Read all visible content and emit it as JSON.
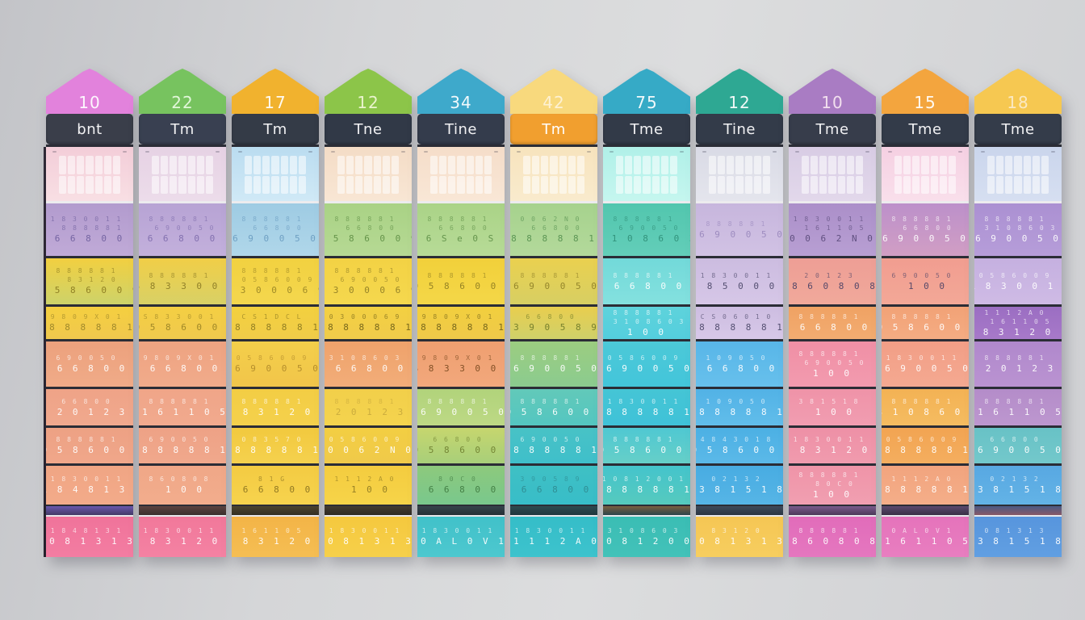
{
  "scene": {
    "wall_color": "#d5d6d8",
    "divider_dark": "#2b2d36",
    "divider_light": "#ecebee"
  },
  "digit_pool": [
    "1 8 4 8 1 3 1",
    "8 8 8 8 8 1",
    "1 8 3 0 0 1 1",
    "6 6 8 0 0",
    "8 5 0 0 0",
    "C S 0 6 0 1 0",
    "6 S e 0 S",
    "0 3 0 0 0 6 9",
    "9 8 0 9 X 0 1",
    "6 9 0 0 5 0",
    "8 6 0 8 0 8",
    "S 8 3 3 0 0 1",
    "0 5 8 6 0 0 9",
    "3 1 0 8 6 0 3",
    "8 1 G",
    "1 0 0",
    "2 0 1 2 3",
    "0 0 6 2 N 0",
    "1 6 1 1 0 5",
    "8 3 1 2 0",
    "0 8 1 3 1 3",
    "1 1 1 2 A 0",
    "0 A L 0 V 1",
    "1 0 8 1 2 0 0 1",
    "3 9 0 5 8 9",
    "4 8 4 3 0 1 8",
    "0 2 1 3 2",
    "3 8 1 5 1 8",
    "1 0 9 0 5 0",
    "8 0 C 0",
    "C S 1 D C L",
    "0 8 3 5 7 0"
  ],
  "columns": [
    {
      "number": "10",
      "peak_color": "#e282dc",
      "number_color": "#ffffff",
      "band": {
        "label": "bnt",
        "bg": "#3a3e4a",
        "fg": "#f2f2f4"
      },
      "grid_row": {
        "bg1": "#f3cdd8",
        "bg2": "#f8dfe4"
      },
      "digit_rows": [
        {
          "bg1": "#b29bce",
          "bg2": "#c0aad7",
          "ink": "#6f5f9e",
          "lines": [
            2,
            1,
            3
          ]
        },
        {
          "bg1": "#f2cf40",
          "bg2": "#cdd36a",
          "ink": "#8a7a20",
          "lines": [
            1,
            19,
            12
          ]
        },
        {
          "bg1": "#f5cf3f",
          "bg2": "#f0c84e",
          "ink": "#9a8428",
          "lines": [
            8,
            1
          ]
        },
        {
          "bg1": "#eca17d",
          "bg2": "#f0ab88",
          "ink": "#ffffff",
          "lines": [
            9,
            3
          ]
        },
        {
          "bg1": "#efa387",
          "bg2": "#f0a98e",
          "ink": "#ffffff",
          "lines": [
            3,
            16
          ]
        },
        {
          "bg1": "#eda184",
          "bg2": "#f0a78a",
          "ink": "#ffffff",
          "lines": [
            1,
            12
          ]
        },
        {
          "bg1": "#f0a584",
          "bg2": "#f3ab8a",
          "ink": "#ffffff",
          "lines": [
            2,
            0
          ]
        }
      ],
      "separator": {
        "bg1": "#6a58ae",
        "bg2": "#433a66"
      },
      "footer": {
        "bg1": "#f0739a",
        "bg2": "#f37da2",
        "ink": "#ffffff",
        "lines": [
          0,
          20
        ]
      }
    },
    {
      "number": "22",
      "peak_color": "#77c35f",
      "number_color": "#eafae2",
      "band": {
        "label": "Tm",
        "bg": "#394051",
        "fg": "#f2f2f4"
      },
      "grid_row": {
        "bg1": "#e6d2e4",
        "bg2": "#ecdcea"
      },
      "digit_rows": [
        {
          "bg1": "#b7a3d4",
          "bg2": "#c3b0dc",
          "ink": "#7e6cac",
          "lines": [
            1,
            9,
            3
          ]
        },
        {
          "bg1": "#f1ce47",
          "bg2": "#d8d166",
          "ink": "#8a7a25",
          "lines": [
            1,
            11
          ]
        },
        {
          "bg1": "#f4cf42",
          "bg2": "#f0c94e",
          "ink": "#9a8325",
          "lines": [
            11,
            12
          ]
        },
        {
          "bg1": "#eea381",
          "bg2": "#f1ab8b",
          "ink": "#ffffff",
          "lines": [
            8,
            3
          ]
        },
        {
          "bg1": "#f0a588",
          "bg2": "#f1aa8e",
          "ink": "#ffffff",
          "lines": [
            1,
            18
          ]
        },
        {
          "bg1": "#eea286",
          "bg2": "#f0a88c",
          "ink": "#ffffff",
          "lines": [
            9,
            1
          ]
        },
        {
          "bg1": "#f0a787",
          "bg2": "#f2ad8d",
          "ink": "#ffffff",
          "lines": [
            10,
            15
          ]
        }
      ],
      "separator": {
        "bg1": "#5c4340",
        "bg2": "#3a2f2d"
      },
      "footer": {
        "bg1": "#f1789a",
        "bg2": "#f482a3",
        "ink": "#ffffff",
        "lines": [
          2,
          19
        ]
      }
    },
    {
      "number": "17",
      "peak_color": "#f1b22e",
      "number_color": "#ffffff",
      "band": {
        "label": "Tm",
        "bg": "#343b47",
        "fg": "#f2f2f4"
      },
      "grid_row": {
        "bg1": "#badcf0",
        "bg2": "#d0e9f6"
      },
      "digit_rows": [
        {
          "bg1": "#9ecbe3",
          "bg2": "#b0d7ea",
          "ink": "#6a9cc0",
          "lines": [
            1,
            3,
            9
          ]
        },
        {
          "bg1": "#f2d140",
          "bg2": "#f4d74e",
          "ink": "#9a8525",
          "lines": [
            1,
            12,
            7
          ]
        },
        {
          "bg1": "#f3d03e",
          "bg2": "#f0cc49",
          "ink": "#8a7820",
          "lines": [
            30,
            1
          ]
        },
        {
          "bg1": "#f4cf4a",
          "bg2": "#f1c54a",
          "ink": "#b08a2a",
          "lines": [
            12,
            9
          ]
        },
        {
          "bg1": "#f3cd44",
          "bg2": "#f4d14c",
          "ink": "#ffffff",
          "lines": [
            1,
            19
          ]
        },
        {
          "bg1": "#f2c93e",
          "bg2": "#f5d14e",
          "ink": "#ffffff",
          "lines": [
            31,
            1
          ]
        },
        {
          "bg1": "#f4cb42",
          "bg2": "#f6d34e",
          "ink": "#8a7220",
          "lines": [
            14,
            3
          ]
        }
      ],
      "separator": {
        "bg1": "#4c442e",
        "bg2": "#332f24"
      },
      "footer": {
        "bg1": "#f3b447",
        "bg2": "#f5be53",
        "ink": "#ffffff",
        "lines": [
          18,
          19
        ]
      }
    },
    {
      "number": "12",
      "peak_color": "#8cc549",
      "number_color": "#f2f8d8",
      "band": {
        "label": "Tne",
        "bg": "#313947",
        "fg": "#f2f2f4"
      },
      "grid_row": {
        "bg1": "#f4dcc6",
        "bg2": "#f8e6d4"
      },
      "digit_rows": [
        {
          "bg1": "#a9d285",
          "bg2": "#b6d994",
          "ink": "#5f8f45",
          "lines": [
            1,
            3,
            12
          ]
        },
        {
          "bg1": "#f3d244",
          "bg2": "#f5d84e",
          "ink": "#8f7d25",
          "lines": [
            1,
            9,
            7
          ]
        },
        {
          "bg1": "#f3d041",
          "bg2": "#f0cb4b",
          "ink": "#6f6018",
          "lines": [
            7,
            1
          ]
        },
        {
          "bg1": "#efa26b",
          "bg2": "#f2ad79",
          "ink": "#ffffff",
          "lines": [
            13,
            3
          ]
        },
        {
          "bg1": "#f2cf4a",
          "bg2": "#f4d44e",
          "ink": "#c8a93c",
          "lines": [
            1,
            16
          ]
        },
        {
          "bg1": "#f3ce42",
          "bg2": "#f0ca4a",
          "ink": "#ffffff",
          "lines": [
            12,
            17
          ]
        },
        {
          "bg1": "#f4cc3f",
          "bg2": "#f6d449",
          "ink": "#8f7a22",
          "lines": [
            21,
            15
          ]
        }
      ],
      "separator": {
        "bg1": "#443c30",
        "bg2": "#2e2a23"
      },
      "footer": {
        "bg1": "#f5c83e",
        "bg2": "#f6d04a",
        "ink": "#ffffff",
        "lines": [
          2,
          20
        ]
      }
    },
    {
      "number": "34",
      "peak_color": "#3ea9cb",
      "number_color": "#ffffff",
      "band": {
        "label": "Tine",
        "bg": "#343c4c",
        "fg": "#f2f2f4"
      },
      "grid_row": {
        "bg1": "#f5ddc9",
        "bg2": "#f9e7d6"
      },
      "digit_rows": [
        {
          "bg1": "#aad387",
          "bg2": "#b7db97",
          "ink": "#5f9048",
          "lines": [
            1,
            3,
            6
          ]
        },
        {
          "bg1": "#f2d03a",
          "bg2": "#f4d748",
          "ink": "#8f7d22",
          "lines": [
            1,
            12
          ]
        },
        {
          "bg1": "#f2cf3d",
          "bg2": "#efc94a",
          "ink": "#6f6018",
          "lines": [
            8,
            1
          ]
        },
        {
          "bg1": "#ef9f70",
          "bg2": "#f2a87c",
          "ink": "#7a4a20",
          "lines": [
            8,
            11
          ]
        },
        {
          "bg1": "#b1d37b",
          "bg2": "#bdd985",
          "ink": "#ffffff",
          "lines": [
            1,
            9
          ]
        },
        {
          "bg1": "#c6d66e",
          "bg2": "#a8cf7a",
          "ink": "#6f8030",
          "lines": [
            3,
            12
          ]
        },
        {
          "bg1": "#8dc97c",
          "bg2": "#79c88d",
          "ink": "#3f7a40",
          "lines": [
            29,
            3
          ]
        }
      ],
      "separator": {
        "bg1": "#36444c",
        "bg2": "#263036"
      },
      "footer": {
        "bg1": "#41c1c9",
        "bg2": "#4dc8cf",
        "ink": "#ffffff",
        "lines": [
          2,
          22
        ]
      }
    },
    {
      "number": "42",
      "peak_color": "#f8d97d",
      "number_color": "#fdf3da",
      "band": {
        "label": "Tm",
        "bg": "#f19f2f",
        "fg": "#ffffff"
      },
      "grid_row": {
        "bg1": "#f7e3bd",
        "bg2": "#f9ebcd"
      },
      "digit_rows": [
        {
          "bg1": "#a6d28d",
          "bg2": "#b3d99b",
          "ink": "#55904f",
          "lines": [
            17,
            3,
            1
          ]
        },
        {
          "bg1": "#ead04f",
          "bg2": "#d7cf63",
          "ink": "#8f8028",
          "lines": [
            1,
            9
          ]
        },
        {
          "bg1": "#e9ce4e",
          "bg2": "#cfd06a",
          "ink": "#6f7a28",
          "lines": [
            3,
            24
          ]
        },
        {
          "bg1": "#9ccd80",
          "bg2": "#8bcb8f",
          "ink": "#ffffff",
          "lines": [
            1,
            9
          ]
        },
        {
          "bg1": "#62c9b9",
          "bg2": "#54c6c1",
          "ink": "#ffffff",
          "lines": [
            1,
            12
          ]
        },
        {
          "bg1": "#48c2c6",
          "bg2": "#3fbfca",
          "ink": "#ffffff",
          "lines": [
            9,
            1
          ]
        },
        {
          "bg1": "#3fc0c4",
          "bg2": "#38bdc8",
          "ink": "#2f8a90",
          "lines": [
            24,
            3
          ]
        }
      ],
      "separator": {
        "bg1": "#2e4a50",
        "bg2": "#21373e"
      },
      "footer": {
        "bg1": "#35bdc8",
        "bg2": "#3dc3cd",
        "ink": "#ffffff",
        "lines": [
          2,
          21
        ]
      }
    },
    {
      "number": "75",
      "peak_color": "#36aac6",
      "number_color": "#ffffff",
      "band": {
        "label": "Tme",
        "bg": "#323a48",
        "fg": "#f2f2f4"
      },
      "grid_row": {
        "bg1": "#b0f0e8",
        "bg2": "#c5f6ef"
      },
      "digit_rows": [
        {
          "bg1": "#52c6ae",
          "bg2": "#63ceb9",
          "ink": "#2f8f78",
          "lines": [
            1,
            9,
            13
          ]
        },
        {
          "bg1": "#72d9d9",
          "bg2": "#84e1df",
          "ink": "#ffffff",
          "lines": [
            1,
            3
          ]
        },
        {
          "bg1": "#5ed3dc",
          "bg2": "#54cedd",
          "ink": "#ffffff",
          "lines": [
            1,
            13,
            15
          ]
        },
        {
          "bg1": "#4cc9d8",
          "bg2": "#43c5da",
          "ink": "#ffffff",
          "lines": [
            12,
            9
          ]
        },
        {
          "bg1": "#45c5d5",
          "bg2": "#3fc2d8",
          "ink": "#ffffff",
          "lines": [
            2,
            1
          ]
        },
        {
          "bg1": "#4fc8d2",
          "bg2": "#66cfc8",
          "ink": "#ffffff",
          "lines": [
            1,
            12
          ]
        },
        {
          "bg1": "#44c4cc",
          "bg2": "#56cabe",
          "ink": "#ffffff",
          "lines": [
            23,
            1
          ]
        }
      ],
      "separator": {
        "bg1": "#7a5f40",
        "bg2": "#2c454c"
      },
      "footer": {
        "bg1": "#3abdb4",
        "bg2": "#43c2b9",
        "ink": "#ffffff",
        "lines": [
          13,
          23
        ]
      }
    },
    {
      "number": "12",
      "peak_color": "#2ea893",
      "number_color": "#ffffff",
      "band": {
        "label": "Tine",
        "bg": "#333b49",
        "fg": "#f2f2f4"
      },
      "grid_row": {
        "bg1": "#d9dae5",
        "bg2": "#e4e5ed"
      },
      "digit_rows": [
        {
          "bg1": "#c7b6dd",
          "bg2": "#d1c2e4",
          "ink": "#9a88bd",
          "lines": [
            1,
            9
          ]
        },
        {
          "bg1": "#ccbce0",
          "bg2": "#d6c7e7",
          "ink": "#4a4668",
          "lines": [
            2,
            4
          ]
        },
        {
          "bg1": "#cdbde1",
          "bg2": "#d7c8e8",
          "ink": "#4a4668",
          "lines": [
            5,
            1
          ]
        },
        {
          "bg1": "#58b6e8",
          "bg2": "#67c0ec",
          "ink": "#ffffff",
          "lines": [
            28,
            3
          ]
        },
        {
          "bg1": "#52b2e6",
          "bg2": "#61bdea",
          "ink": "#ffffff",
          "lines": [
            28,
            1
          ]
        },
        {
          "bg1": "#4cb0e4",
          "bg2": "#5bb9e8",
          "ink": "#ffffff",
          "lines": [
            25,
            12
          ]
        },
        {
          "bg1": "#48ace2",
          "bg2": "#56b5e6",
          "ink": "#ffffff",
          "lines": [
            26,
            27
          ]
        }
      ],
      "separator": {
        "bg1": "#3e4a5a",
        "bg2": "#2b3542"
      },
      "footer": {
        "bg1": "#f5c654",
        "bg2": "#f7ce5f",
        "ink": "#ffffff",
        "lines": [
          19,
          20
        ]
      }
    },
    {
      "number": "10",
      "peak_color": "#a97cc3",
      "number_color": "#f8e8f2",
      "band": {
        "label": "Tme",
        "bg": "#373d4b",
        "fg": "#f2f2f4"
      },
      "grid_row": {
        "bg1": "#d8cce4",
        "bg2": "#e2d8eb"
      },
      "digit_rows": [
        {
          "bg1": "#ab8fc9",
          "bg2": "#b89fd3",
          "ink": "#5a4a7a",
          "lines": [
            2,
            18,
            17
          ]
        },
        {
          "bg1": "#ee9e95",
          "bg2": "#f0a99b",
          "ink": "#4a4266",
          "lines": [
            16,
            10
          ]
        },
        {
          "bg1": "#f0a263",
          "bg2": "#f2ac71",
          "ink": "#ffffff",
          "lines": [
            1,
            3
          ]
        },
        {
          "bg1": "#f08fa5",
          "bg2": "#f29baf",
          "ink": "#ffffff",
          "lines": [
            1,
            9,
            15
          ]
        },
        {
          "bg1": "#ef93a8",
          "bg2": "#f19db1",
          "ink": "#ffffff",
          "lines": [
            27,
            15
          ]
        },
        {
          "bg1": "#ee90a6",
          "bg2": "#f09bae",
          "ink": "#ffffff",
          "lines": [
            2,
            19
          ]
        },
        {
          "bg1": "#ef94a8",
          "bg2": "#f19fb1",
          "ink": "#ffffff",
          "lines": [
            1,
            29,
            15
          ]
        }
      ],
      "separator": {
        "bg1": "#7a5a8c",
        "bg2": "#4c3959"
      },
      "footer": {
        "bg1": "#e16cba",
        "bg2": "#e577bf",
        "ink": "#ffffff",
        "lines": [
          1,
          10
        ]
      }
    },
    {
      "number": "15",
      "peak_color": "#f3a53e",
      "number_color": "#ffffff",
      "band": {
        "label": "Tme",
        "bg": "#333b49",
        "fg": "#f2f2f4"
      },
      "grid_row": {
        "bg1": "#f5d0e2",
        "bg2": "#f9dfeb"
      },
      "digit_rows": [
        {
          "bg1": "#bc90ca",
          "bg2": "#d19ec4",
          "ink": "#ffffff",
          "lines": [
            1,
            3,
            9
          ]
        },
        {
          "bg1": "#f19d90",
          "bg2": "#f3a897",
          "ink": "#4a4266",
          "lines": [
            9,
            15
          ]
        },
        {
          "bg1": "#f2a276",
          "bg2": "#f4ac83",
          "ink": "#ffffff",
          "lines": [
            1,
            12
          ]
        },
        {
          "bg1": "#f29e86",
          "bg2": "#f4a991",
          "ink": "#ffffff",
          "lines": [
            2,
            9
          ]
        },
        {
          "bg1": "#f3b254",
          "bg2": "#f5bc61",
          "ink": "#ffffff",
          "lines": [
            1,
            13
          ]
        },
        {
          "bg1": "#f2a452",
          "bg2": "#f4ae5f",
          "ink": "#ffffff",
          "lines": [
            12,
            1
          ]
        },
        {
          "bg1": "#f2a47e",
          "bg2": "#f4ae89",
          "ink": "#ffffff",
          "lines": [
            21,
            1
          ]
        }
      ],
      "separator": {
        "bg1": "#5c4a6e",
        "bg2": "#3a3046"
      },
      "footer": {
        "bg1": "#e573bb",
        "bg2": "#e87ec0",
        "ink": "#ffffff",
        "lines": [
          22,
          18
        ]
      }
    },
    {
      "number": "18",
      "peak_color": "#f6c851",
      "number_color": "#fbeccb",
      "band": {
        "label": "Tme",
        "bg": "#343c4a",
        "fg": "#f2f2f4"
      },
      "grid_row": {
        "bg1": "#cad5ec",
        "bg2": "#d6dff1"
      },
      "digit_rows": [
        {
          "bg1": "#ab90d2",
          "bg2": "#b69dd9",
          "ink": "#ffffff",
          "lines": [
            1,
            13,
            9
          ]
        },
        {
          "bg1": "#c5b0e0",
          "bg2": "#cfbbe5",
          "ink": "#ffffff",
          "lines": [
            12,
            2
          ]
        },
        {
          "bg1": "#9b6ec2",
          "bg2": "#a779c9",
          "ink": "#ffffff",
          "lines": [
            21,
            18,
            19
          ]
        },
        {
          "bg1": "#b088cc",
          "bg2": "#ba93d1",
          "ink": "#ffffff",
          "lines": [
            1,
            16
          ]
        },
        {
          "bg1": "#b48cc9",
          "bg2": "#bd97cf",
          "ink": "#ffffff",
          "lines": [
            1,
            18
          ]
        },
        {
          "bg1": "#68c2c6",
          "bg2": "#73c8cb",
          "ink": "#ffffff",
          "lines": [
            3,
            9
          ]
        },
        {
          "bg1": "#58a8e2",
          "bg2": "#63b3e6",
          "ink": "#ffffff",
          "lines": [
            26,
            27
          ]
        }
      ],
      "separator": {
        "bg1": "#4a5a85",
        "bg2": "#885866"
      },
      "footer": {
        "bg1": "#5795dd",
        "bg2": "#619fe2",
        "ink": "#ffffff",
        "lines": [
          20,
          27
        ]
      }
    }
  ]
}
